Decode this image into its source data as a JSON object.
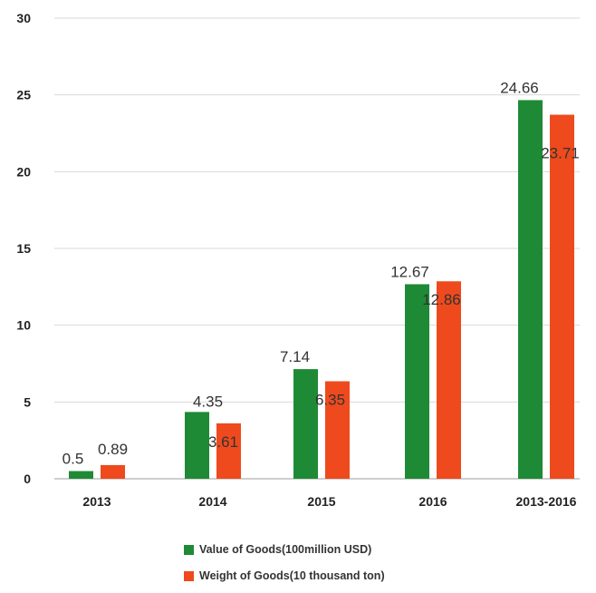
{
  "chart_data": {
    "type": "bar",
    "categories": [
      "2013",
      "2014",
      "2015",
      "2016",
      "2013-2016"
    ],
    "series": [
      {
        "name": "Value of Goods(100million USD)",
        "values": [
          0.5,
          4.35,
          7.14,
          12.67,
          24.66
        ],
        "labels": [
          "0.5",
          "4.35",
          "7.14",
          "12.67",
          "24.66"
        ],
        "color": "#1f8a36"
      },
      {
        "name": "Weight of Goods(10 thousand ton)",
        "values": [
          0.89,
          3.61,
          6.35,
          12.86,
          23.71
        ],
        "labels": [
          "0.89",
          "3.61",
          "6.35",
          "12.86",
          "23.71"
        ],
        "color": "#ee4a1d"
      }
    ],
    "ylim": [
      0,
      30
    ],
    "yticks": [
      "0",
      "5",
      "10",
      "15",
      "20",
      "25",
      "30"
    ],
    "title": "",
    "xlabel": "",
    "ylabel": "",
    "grid": true,
    "legend_position": "bottom"
  }
}
